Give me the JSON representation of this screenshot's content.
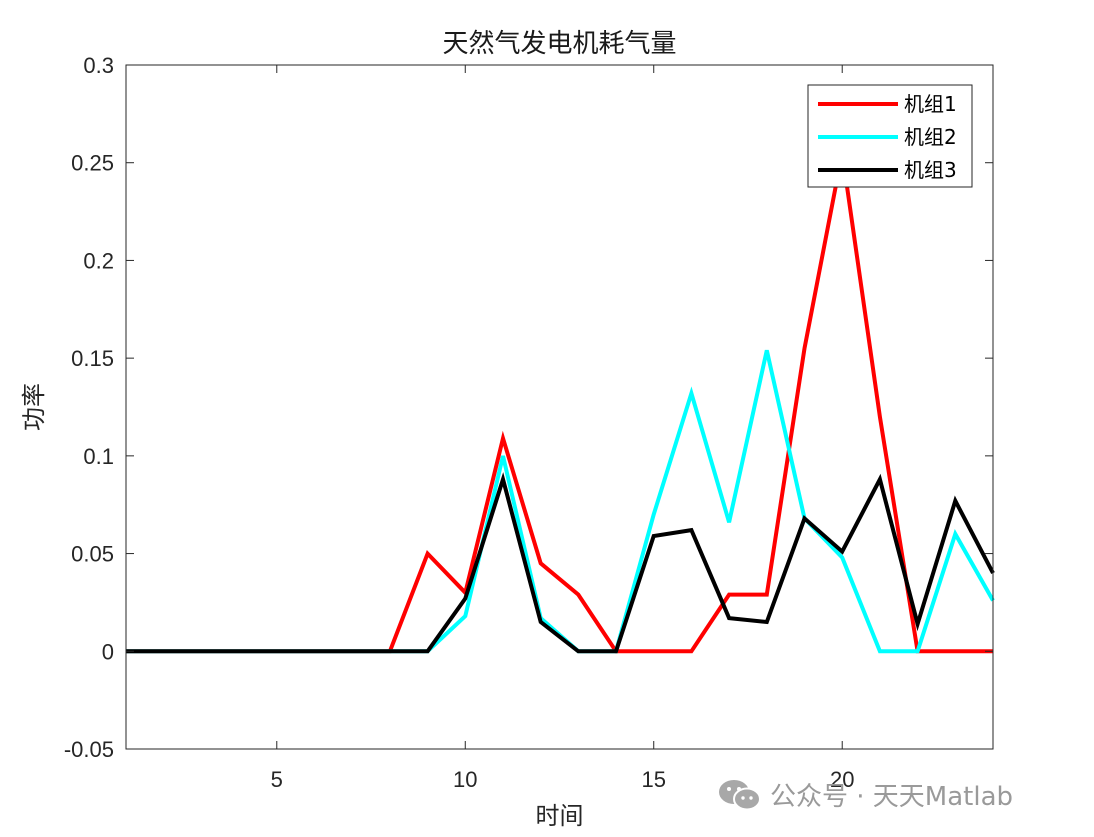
{
  "chart_data": {
    "type": "line",
    "title": "天然气发电机耗气量",
    "xlabel": "时间",
    "ylabel": "功率",
    "xlim": [
      1,
      24
    ],
    "ylim": [
      -0.05,
      0.3
    ],
    "xticks": [
      5,
      10,
      15,
      20
    ],
    "yticks": [
      -0.05,
      0,
      0.05,
      0.1,
      0.15,
      0.2,
      0.25,
      0.3
    ],
    "ytick_labels": [
      "-0.05",
      "0",
      "0.05",
      "0.1",
      "0.15",
      "0.2",
      "0.25",
      "0.3"
    ],
    "grid": true,
    "legend_position": "top-right",
    "x": [
      1,
      2,
      3,
      4,
      5,
      6,
      7,
      8,
      9,
      10,
      11,
      12,
      13,
      14,
      15,
      16,
      17,
      18,
      19,
      20,
      21,
      22,
      23,
      24
    ],
    "series": [
      {
        "name": "机组1",
        "color": "#ff0000",
        "values": [
          0,
          0,
          0,
          0,
          0,
          0,
          0,
          0,
          0.05,
          0.03,
          0.109,
          0.045,
          0.029,
          0,
          0,
          0,
          0.029,
          0.029,
          0.155,
          0.255,
          0.12,
          0,
          0,
          0
        ]
      },
      {
        "name": "机组2",
        "color": "#00ffff",
        "values": [
          0,
          0,
          0,
          0,
          0,
          0,
          0,
          0,
          0,
          0.018,
          0.1,
          0.017,
          0,
          0,
          0.07,
          0.132,
          0.066,
          0.154,
          0.068,
          0.048,
          0,
          0,
          0.06,
          0.026
        ]
      },
      {
        "name": "机组3",
        "color": "#000000",
        "values": [
          0,
          0,
          0,
          0,
          0,
          0,
          0,
          0,
          0,
          0.027,
          0.088,
          0.015,
          0,
          0,
          0.059,
          0.062,
          0.017,
          0.015,
          0.068,
          0.051,
          0.088,
          0.014,
          0.077,
          0.04
        ]
      }
    ]
  },
  "watermark": {
    "text": "公众号 · 天天Matlab",
    "icon": "wechat-icon"
  }
}
